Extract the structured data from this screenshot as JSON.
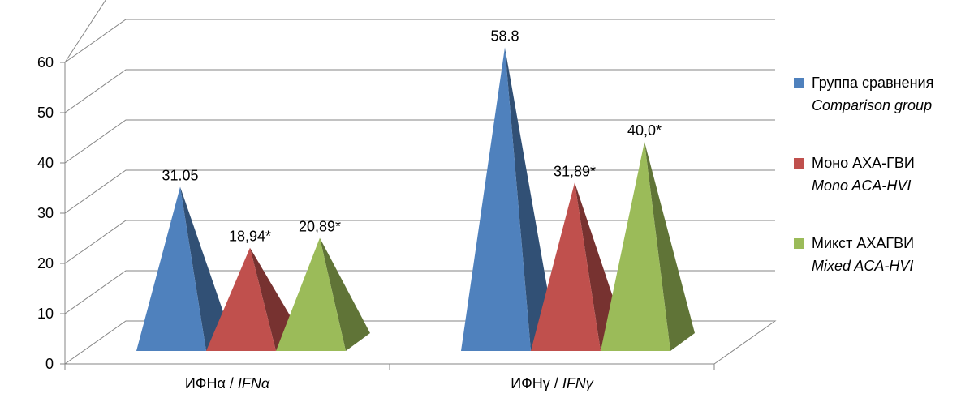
{
  "chart_data": {
    "type": "bar",
    "style": "3d-pyramid",
    "categories": [
      {
        "ru": "ИФНα / ",
        "en": "IFNα"
      },
      {
        "ru": "ИФНγ / ",
        "en": "IFNγ"
      }
    ],
    "series": [
      {
        "name_ru": "Группа сравнения",
        "name_en": "Comparison group",
        "color": "#4f81bd",
        "values": [
          31.05,
          58.8
        ],
        "labels": [
          "31.05",
          "58.8"
        ]
      },
      {
        "name_ru": "Моно АХА-ГВИ",
        "name_en": "Mono ACA-HVI",
        "color": "#c0504d",
        "values": [
          18.94,
          31.89
        ],
        "labels": [
          "18,94*",
          "31,89*"
        ]
      },
      {
        "name_ru": "Микст АХАГВИ",
        "name_en": "Mixed ACA-HVI",
        "color": "#9bbb59",
        "values": [
          20.89,
          40.0
        ],
        "labels": [
          "20,89*",
          "40,0*"
        ]
      }
    ],
    "yticks": [
      "0",
      "10",
      "20",
      "30",
      "40",
      "50",
      "60"
    ],
    "ylim": [
      0,
      60
    ],
    "grid": true,
    "legend_position": "right"
  }
}
